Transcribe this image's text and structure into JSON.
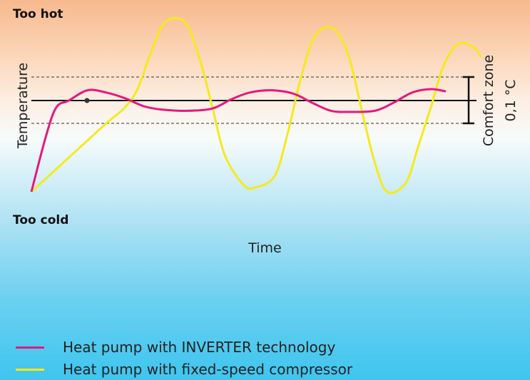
{
  "labels": {
    "too_hot": "Too hot",
    "too_cold": "Too cold",
    "comfort_zone": "Comfort zone",
    "tolerance": "0,1 °C"
  },
  "chart_data": {
    "type": "line",
    "xlabel": "Time",
    "ylabel": "Temperature",
    "setpoint": 0,
    "comfort_band": [
      -1,
      1
    ],
    "ylim": [
      -4.2,
      3.8
    ],
    "series": [
      {
        "name": "Heat pump with INVERTER technology",
        "color": "#e6177f",
        "points": [
          [
            0,
            -4.0
          ],
          [
            0.12,
            -1.5
          ],
          [
            0.2,
            -0.3
          ],
          [
            0.3,
            0
          ],
          [
            0.45,
            0.45
          ],
          [
            0.6,
            0.35
          ],
          [
            0.75,
            0.1
          ],
          [
            0.9,
            -0.25
          ],
          [
            1.05,
            -0.4
          ],
          [
            1.25,
            -0.45
          ],
          [
            1.45,
            -0.35
          ],
          [
            1.6,
            0.05
          ],
          [
            1.75,
            0.35
          ],
          [
            1.92,
            0.45
          ],
          [
            2.1,
            0.3
          ],
          [
            2.25,
            -0.1
          ],
          [
            2.4,
            -0.45
          ],
          [
            2.55,
            -0.5
          ],
          [
            2.75,
            -0.45
          ],
          [
            2.9,
            -0.1
          ],
          [
            3.05,
            0.35
          ],
          [
            3.2,
            0.5
          ],
          [
            3.32,
            0.4
          ]
        ]
      },
      {
        "name": "Heat pump with fixed-speed compressor",
        "color": "#f5ea1c",
        "points": [
          [
            0,
            -4.0
          ],
          [
            0.3,
            -2.5
          ],
          [
            0.6,
            -1.0
          ],
          [
            0.75,
            -0.3
          ],
          [
            0.85,
            0.5
          ],
          [
            0.95,
            2.0
          ],
          [
            1.05,
            3.3
          ],
          [
            1.15,
            3.6
          ],
          [
            1.25,
            3.3
          ],
          [
            1.35,
            1.8
          ],
          [
            1.45,
            -0.3
          ],
          [
            1.55,
            -2.4
          ],
          [
            1.7,
            -3.7
          ],
          [
            1.8,
            -3.8
          ],
          [
            1.95,
            -3.3
          ],
          [
            2.05,
            -1.5
          ],
          [
            2.15,
            0.8
          ],
          [
            2.25,
            2.6
          ],
          [
            2.35,
            3.2
          ],
          [
            2.45,
            3.0
          ],
          [
            2.55,
            1.8
          ],
          [
            2.65,
            -0.5
          ],
          [
            2.75,
            -2.7
          ],
          [
            2.85,
            -4.0
          ],
          [
            3.0,
            -3.6
          ],
          [
            3.1,
            -2.0
          ],
          [
            3.2,
            -0.3
          ],
          [
            3.3,
            1.5
          ],
          [
            3.42,
            2.5
          ],
          [
            3.55,
            2.3
          ],
          [
            3.6,
            1.9
          ]
        ]
      }
    ],
    "legend": "bottom-left"
  }
}
